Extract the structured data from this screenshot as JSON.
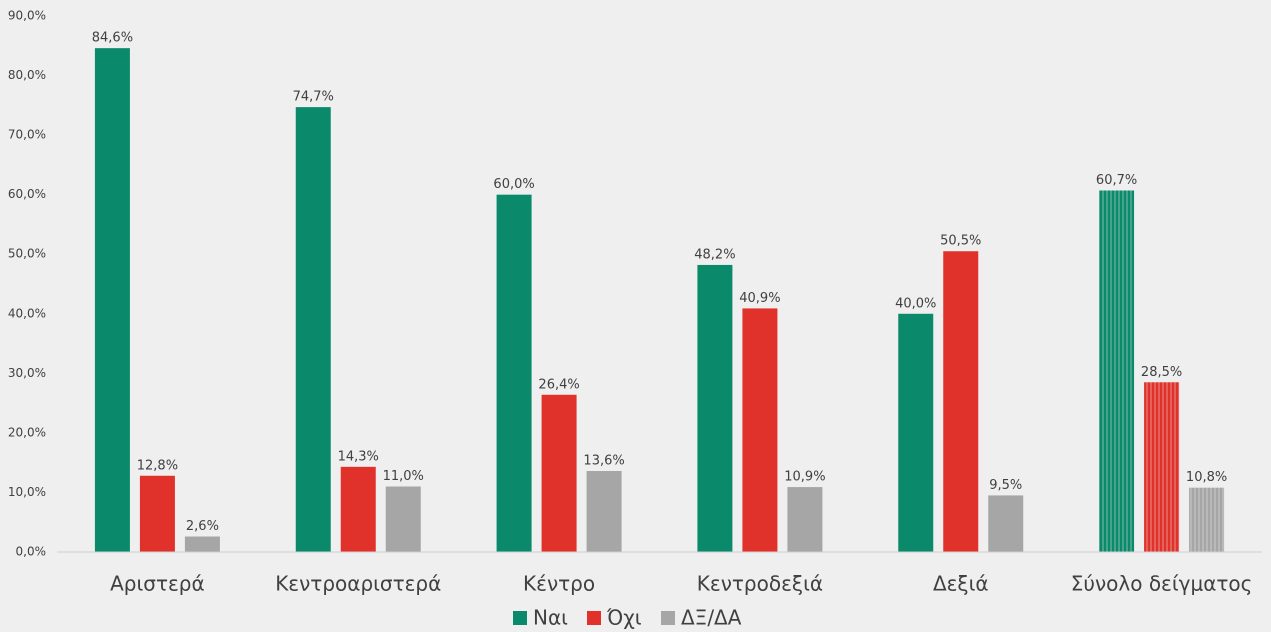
{
  "chart_data": {
    "type": "bar",
    "categories": [
      "Αριστερά",
      "Κεντροαριστερά",
      "Κέντρο",
      "Κεντροδεξιά",
      "Δεξιά",
      "Σύνολο δείγματος"
    ],
    "series": [
      {
        "name": "Ναι",
        "color": "#0a8a6a",
        "values": [
          84.6,
          74.7,
          60.0,
          48.2,
          40.0,
          60.7
        ],
        "value_labels": [
          "84,6%",
          "74,7%",
          "60,0%",
          "48,2%",
          "40,0%",
          "60,7%"
        ]
      },
      {
        "name": "Όχι",
        "color": "#e0312b",
        "values": [
          12.8,
          14.3,
          26.4,
          40.9,
          50.5,
          28.5
        ],
        "value_labels": [
          "12,8%",
          "14,3%",
          "26,4%",
          "40,9%",
          "50,5%",
          "28,5%"
        ]
      },
      {
        "name": "ΔΞ/ΔΑ",
        "color": "#a6a6a6",
        "values": [
          2.6,
          11.0,
          13.6,
          10.9,
          9.5,
          10.8
        ],
        "value_labels": [
          "2,6%",
          "11,0%",
          "13,6%",
          "10,9%",
          "9,5%",
          "10,8%"
        ]
      }
    ],
    "ylim": [
      0,
      90
    ],
    "yticks": [
      {
        "value": 0,
        "label": "0,0%"
      },
      {
        "value": 10,
        "label": "10,0%"
      },
      {
        "value": 20,
        "label": "20,0%"
      },
      {
        "value": 30,
        "label": "30,0%"
      },
      {
        "value": 40,
        "label": "40,0%"
      },
      {
        "value": 50,
        "label": "50,0%"
      },
      {
        "value": 60,
        "label": "60,0%"
      },
      {
        "value": 70,
        "label": "70,0%"
      },
      {
        "value": 80,
        "label": "80,0%"
      },
      {
        "value": 90,
        "label": "90,0%"
      }
    ],
    "grid": false,
    "legend": "bottom"
  }
}
